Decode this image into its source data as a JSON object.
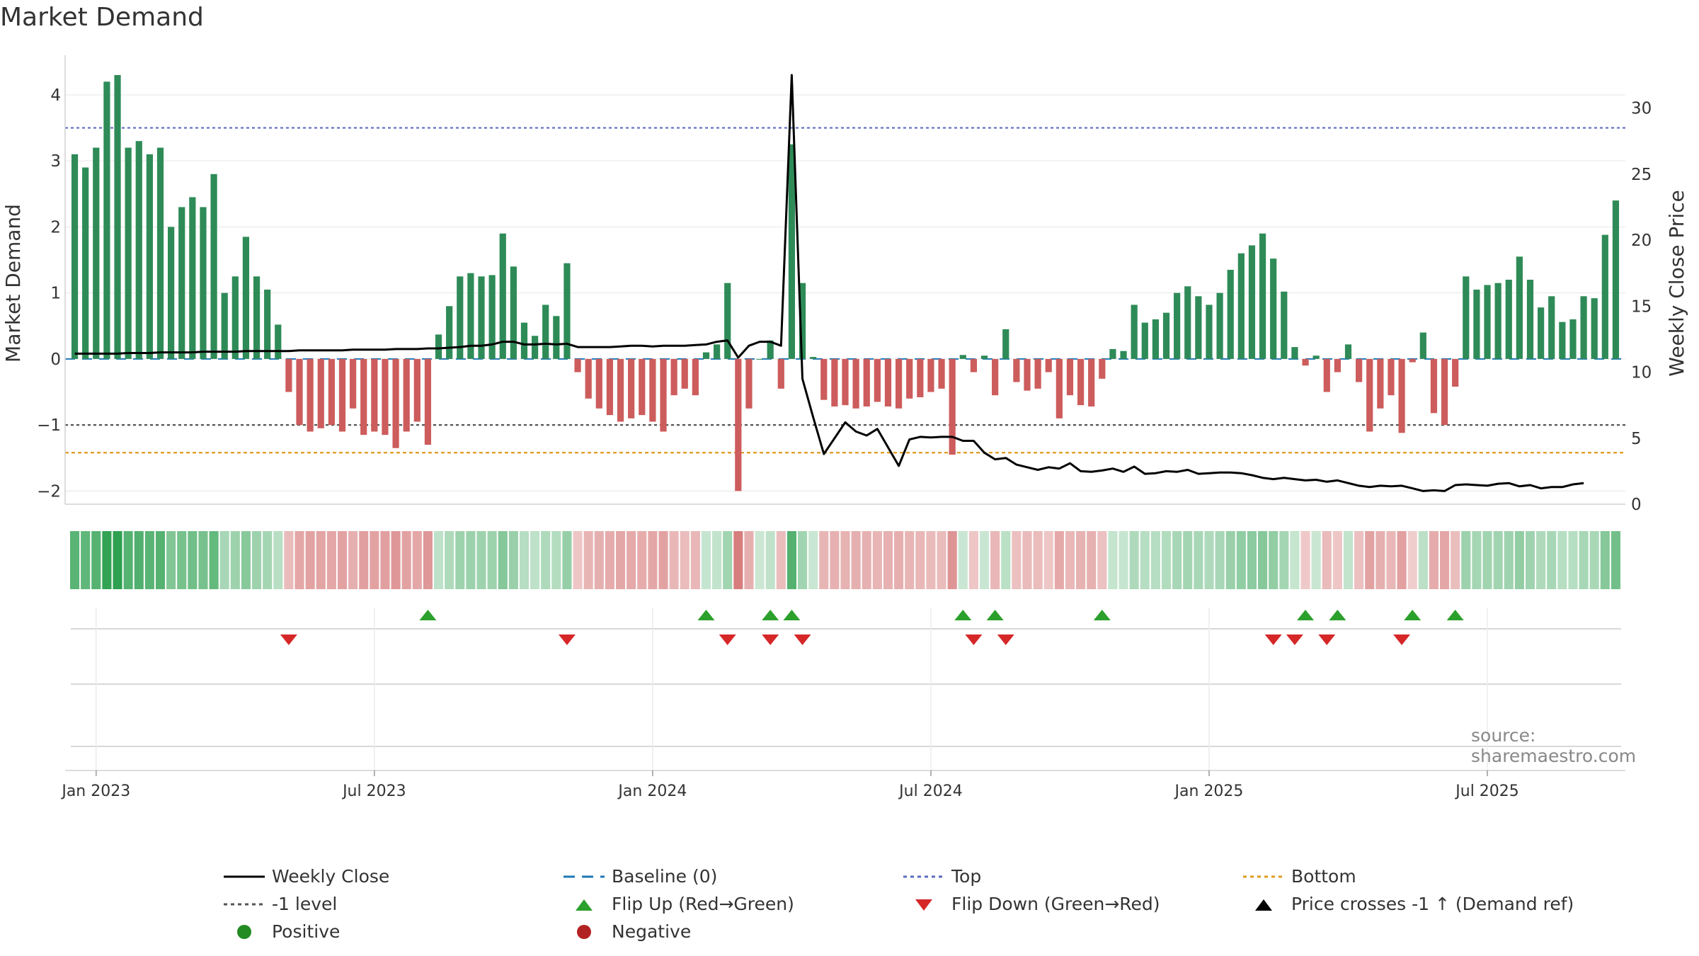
{
  "title": "Market Demand",
  "source": "source: sharemaestro.com",
  "chart_data": {
    "type": "bar",
    "title": "Market Demand",
    "ylabel": "Market Demand",
    "y2label": "Weekly Close Price",
    "ylim": [
      -2.2,
      4.6
    ],
    "y2lim": [
      0,
      34
    ],
    "yticks": [
      4,
      3,
      2,
      1,
      0,
      -1,
      -2
    ],
    "ytick_labels": [
      "4",
      "3",
      "2",
      "1",
      "0",
      "−1",
      "−2"
    ],
    "y2ticks": [
      30,
      25,
      20,
      15,
      10,
      5,
      0
    ],
    "y2tick_labels": [
      "30",
      "25",
      "20",
      "15",
      "10",
      "5",
      "0"
    ],
    "x_tick_weeks": [
      2,
      28,
      54,
      80,
      106,
      132
    ],
    "x_tick_labels": [
      "Jan 2023",
      "Jul 2023",
      "Jan 2024",
      "Jul 2024",
      "Jan 2025",
      "Jul 2025"
    ],
    "reference_lines": {
      "top": 3.5,
      "minus_one": -1,
      "bottom": -1.42,
      "baseline": 0
    },
    "demand": [
      3.1,
      2.9,
      3.2,
      4.2,
      4.3,
      3.2,
      3.3,
      3.1,
      3.2,
      2.0,
      2.3,
      2.45,
      2.3,
      2.8,
      1.0,
      1.25,
      1.85,
      1.25,
      1.05,
      0.52,
      -0.5,
      -1.0,
      -1.1,
      -1.05,
      -1.0,
      -1.1,
      -0.75,
      -1.15,
      -1.1,
      -1.15,
      -1.35,
      -1.1,
      -0.95,
      -1.3,
      0.37,
      0.8,
      1.25,
      1.3,
      1.25,
      1.27,
      1.9,
      1.4,
      0.55,
      0.35,
      0.82,
      0.65,
      1.45,
      -0.2,
      -0.6,
      -0.75,
      -0.85,
      -0.95,
      -0.9,
      -0.85,
      -0.95,
      -1.1,
      -0.55,
      -0.45,
      -0.55,
      0.1,
      0.22,
      1.15,
      -2.0,
      -0.75,
      0.0,
      0.28,
      -0.45,
      3.25,
      1.15,
      0.03,
      -0.62,
      -0.72,
      -0.7,
      -0.75,
      -0.72,
      -0.65,
      -0.72,
      -0.75,
      -0.6,
      -0.58,
      -0.5,
      -0.45,
      -1.45,
      0.06,
      -0.2,
      0.05,
      -0.55,
      0.45,
      -0.35,
      -0.48,
      -0.45,
      -0.2,
      -0.9,
      -0.55,
      -0.7,
      -0.72,
      -0.3,
      0.15,
      0.12,
      0.82,
      0.55,
      0.6,
      0.7,
      1.0,
      1.1,
      0.95,
      0.82,
      1.0,
      1.35,
      1.6,
      1.72,
      1.9,
      1.52,
      1.02,
      0.18,
      -0.1,
      0.05,
      -0.5,
      -0.2,
      0.22,
      -0.35,
      -1.1,
      -0.75,
      -0.55,
      -1.12,
      -0.05,
      0.4,
      -0.82,
      -1.0,
      -0.42,
      1.25,
      1.05,
      1.12,
      1.15,
      1.2,
      1.55,
      1.2,
      0.78,
      0.95,
      0.56,
      0.6,
      0.95,
      0.92,
      1.88,
      2.4
    ],
    "weekly_close": [
      11.4,
      11.4,
      11.4,
      11.4,
      11.4,
      11.45,
      11.45,
      11.45,
      11.5,
      11.5,
      11.5,
      11.5,
      11.55,
      11.55,
      11.55,
      11.55,
      11.6,
      11.6,
      11.6,
      11.6,
      11.6,
      11.65,
      11.65,
      11.65,
      11.65,
      11.65,
      11.7,
      11.7,
      11.7,
      11.7,
      11.75,
      11.75,
      11.75,
      11.8,
      11.8,
      11.85,
      11.9,
      12.0,
      12.0,
      12.1,
      12.3,
      12.3,
      12.1,
      12.1,
      12.15,
      12.1,
      12.15,
      11.9,
      11.9,
      11.9,
      11.9,
      11.95,
      12.0,
      12.0,
      11.95,
      12.0,
      12.0,
      12.0,
      12.05,
      12.1,
      12.3,
      12.4,
      11.1,
      12.0,
      12.3,
      12.3,
      12.0,
      32.5,
      9.5,
      6.6,
      3.8,
      5.0,
      6.2,
      5.5,
      5.2,
      5.7,
      4.3,
      2.9,
      4.9,
      5.1,
      5.05,
      5.1,
      5.1,
      4.8,
      4.8,
      3.9,
      3.4,
      3.5,
      3.0,
      2.8,
      2.6,
      2.8,
      2.7,
      3.1,
      2.5,
      2.45,
      2.55,
      2.7,
      2.45,
      2.85,
      2.3,
      2.35,
      2.5,
      2.45,
      2.6,
      2.3,
      2.35,
      2.4,
      2.4,
      2.35,
      2.2,
      2.0,
      1.9,
      2.0,
      1.9,
      1.8,
      1.85,
      1.7,
      1.8,
      1.6,
      1.4,
      1.3,
      1.4,
      1.35,
      1.4,
      1.2,
      1.0,
      1.05,
      1.0,
      1.45,
      1.5,
      1.45,
      1.4,
      1.55,
      1.6,
      1.35,
      1.45,
      1.2,
      1.3,
      1.3,
      1.5,
      1.6
    ],
    "flip_up_weeks": [
      33,
      59,
      65,
      67,
      83,
      86,
      96,
      115,
      118,
      125,
      129
    ],
    "flip_down_weeks": [
      20,
      46,
      61,
      65,
      68,
      84,
      87,
      112,
      114,
      117,
      124
    ],
    "series": [
      {
        "name": "Weekly Close",
        "style": "line",
        "color": "#000000"
      },
      {
        "name": "Market Demand",
        "style": "bar",
        "positive_color": "#2e8b57",
        "negative_color": "#cd5c5c"
      }
    ]
  },
  "legend": {
    "items": [
      {
        "label": "Weekly Close",
        "symbol": "solid-line",
        "color": "#000000"
      },
      {
        "label": "Baseline (0)",
        "symbol": "dashed-line",
        "color": "#1f77b4"
      },
      {
        "label": "Top",
        "symbol": "dotted-line",
        "color": "#5c6bc0"
      },
      {
        "label": "Bottom",
        "symbol": "dotted-line",
        "color": "#e09a20"
      },
      {
        "label": "-1 level",
        "symbol": "dotted-line",
        "color": "#555555"
      },
      {
        "label": "Flip Up (Red→Green)",
        "symbol": "triangle-up",
        "color": "#2ca02c"
      },
      {
        "label": "Flip Down (Green→Red)",
        "symbol": "triangle-down",
        "color": "#d62728"
      },
      {
        "label": "Price crosses -1 ↑ (Demand ref)",
        "symbol": "triangle-up",
        "color": "#000000"
      },
      {
        "label": "Positive",
        "symbol": "circle",
        "color": "#228b22"
      },
      {
        "label": "Negative",
        "symbol": "circle",
        "color": "#b22222"
      }
    ]
  },
  "colors": {
    "positive": "#2e8b57",
    "negative": "#cd5c5c",
    "flip_up": "#2ca02c",
    "flip_down": "#d62728"
  }
}
